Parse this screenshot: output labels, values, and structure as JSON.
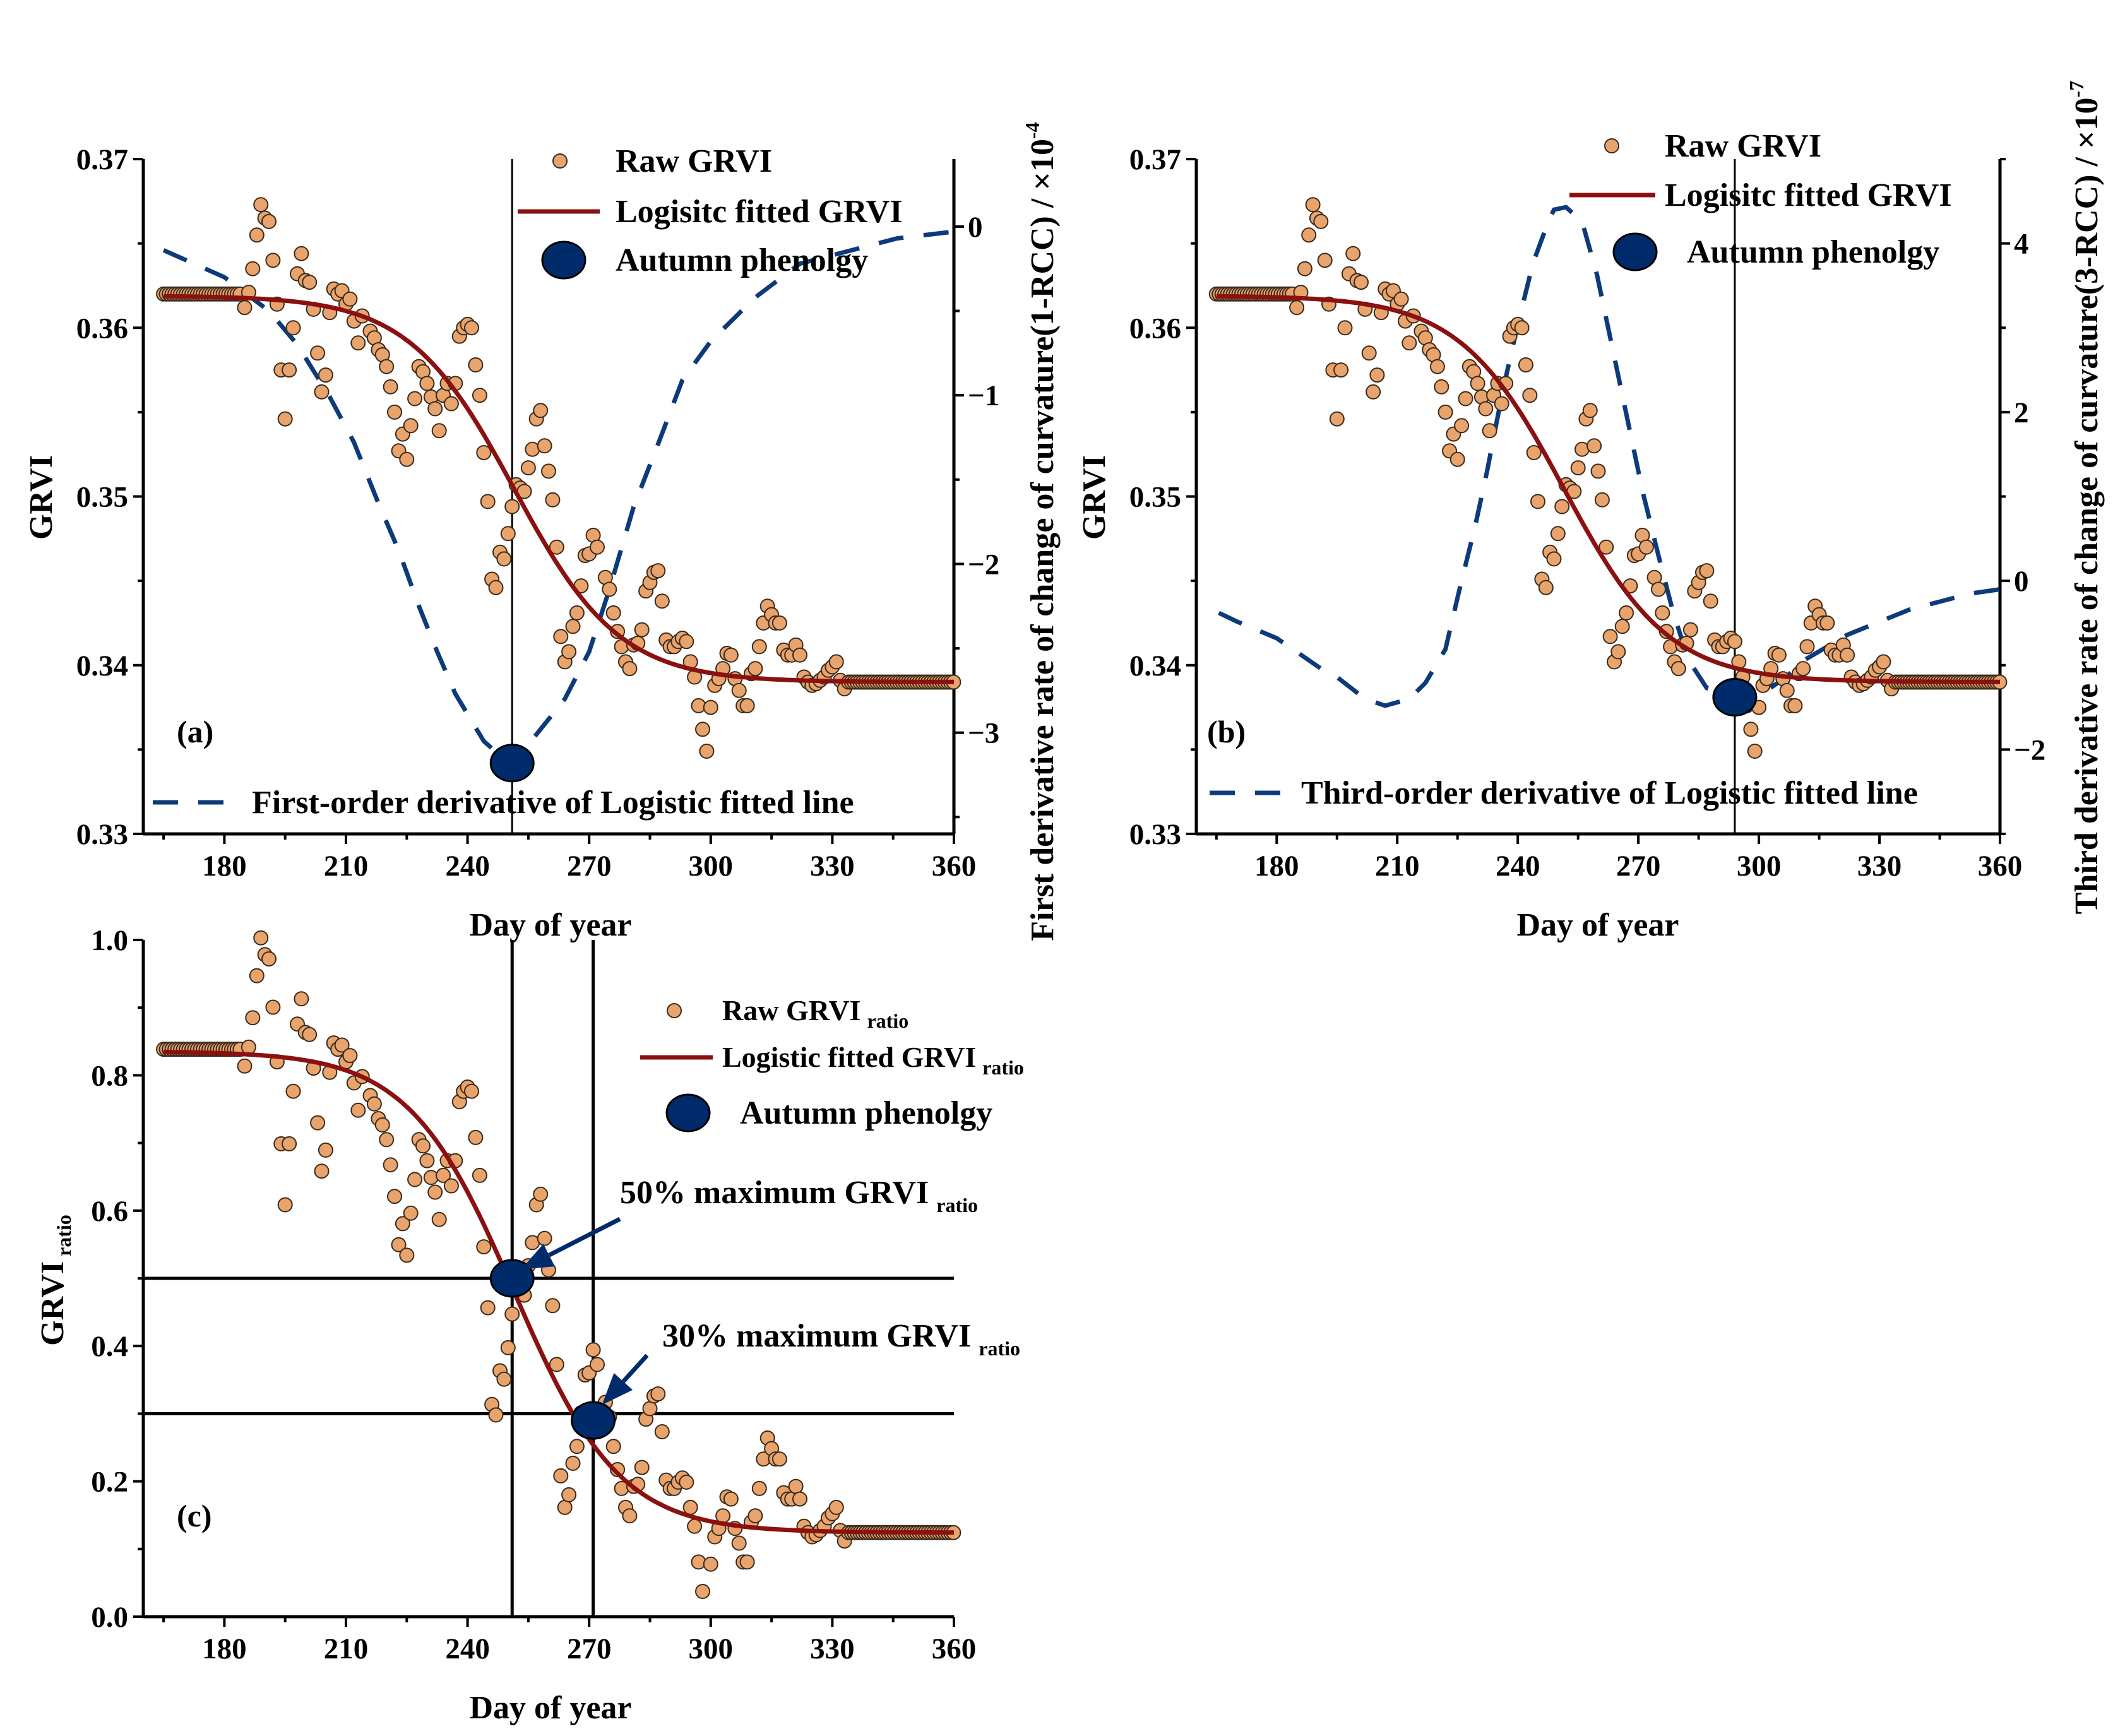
{
  "chart_data": [
    {
      "id": "a",
      "type": "scatter+line",
      "panel_label": "(a)",
      "xlabel": "Day of year",
      "ylabel": "GRVI",
      "y2label": "First derivative rate of change of curvature(1-RCC) / ×10",
      "y2label_exp": "-4",
      "xlim": [
        160,
        360
      ],
      "xticks": [
        180,
        210,
        240,
        270,
        300,
        330,
        360
      ],
      "ylim": [
        0.33,
        0.37
      ],
      "yticks": [
        "0.33",
        "0.34",
        "0.35",
        "0.36",
        "0.37"
      ],
      "y2lim": [
        -3.6,
        0.4
      ],
      "y2ticks": [
        "−3",
        "−2",
        "−1",
        "0"
      ],
      "y2tick_values": [
        -3,
        -2,
        -1,
        0
      ],
      "legend": {
        "raw": "Raw GRVI",
        "fitted": "Logisitc fitted GRVI",
        "phenology": "Autumn phenolgy",
        "derivative": "First-order derivative of Logistic fitted line"
      },
      "phenology_point": {
        "day": 251,
        "grvi": 0.3342
      },
      "vertical_line_day": 251,
      "derivative_curve": [
        [
          165,
          -0.14
        ],
        [
          180,
          -0.3
        ],
        [
          191,
          -0.5
        ],
        [
          198,
          -0.7
        ],
        [
          206,
          -1.01
        ],
        [
          212,
          -1.28
        ],
        [
          218,
          -1.64
        ],
        [
          223,
          -1.92
        ],
        [
          228,
          -2.25
        ],
        [
          232.5,
          -2.52
        ],
        [
          237,
          -2.77
        ],
        [
          244,
          -3.05
        ],
        [
          251,
          -3.2
        ],
        [
          255,
          -3.07
        ],
        [
          264,
          -2.8
        ],
        [
          270,
          -2.52
        ],
        [
          275,
          -2.15
        ],
        [
          281,
          -1.66
        ],
        [
          287,
          -1.29
        ],
        [
          293,
          -0.91
        ],
        [
          300,
          -0.68
        ],
        [
          311,
          -0.42
        ],
        [
          322,
          -0.22
        ],
        [
          346,
          -0.07
        ],
        [
          360,
          -0.03
        ]
      ]
    },
    {
      "id": "b",
      "type": "scatter+line",
      "panel_label": "(b)",
      "xlabel": "Day of year",
      "ylabel": "GRVI",
      "y2label": "Third derivative rate of change of curvature(3-RCC) / ×10",
      "y2label_exp": "-7",
      "xlim": [
        160,
        360
      ],
      "xticks": [
        180,
        210,
        240,
        270,
        300,
        330,
        360
      ],
      "ylim": [
        0.33,
        0.37
      ],
      "yticks": [
        "0.33",
        "0.34",
        "0.35",
        "0.36",
        "0.37"
      ],
      "y2lim": [
        -3,
        5
      ],
      "y2ticks": [
        "−2",
        "0",
        "2",
        "4"
      ],
      "y2tick_values": [
        -2,
        0,
        2,
        4
      ],
      "legend": {
        "raw": "Raw GRVI",
        "fitted": "Logisitc fitted GRVI",
        "phenology": "Autumn phenolgy",
        "derivative": "Third-order derivative of Logistic fitted line"
      },
      "phenology_point": {
        "day": 294,
        "grvi": 0.3381
      },
      "vertical_line_day": 294,
      "derivative_curve": [
        [
          165.6,
          -0.38
        ],
        [
          170,
          -0.48
        ],
        [
          180,
          -0.68
        ],
        [
          184,
          -0.81
        ],
        [
          191,
          -1.04
        ],
        [
          195,
          -1.14
        ],
        [
          202,
          -1.4
        ],
        [
          207,
          -1.48
        ],
        [
          213,
          -1.4
        ],
        [
          217,
          -1.21
        ],
        [
          222,
          -0.81
        ],
        [
          225.6,
          -0.08
        ],
        [
          229.4,
          0.65
        ],
        [
          232.4,
          1.31
        ],
        [
          236.2,
          2.24
        ],
        [
          240,
          3.04
        ],
        [
          243.8,
          3.77
        ],
        [
          247.6,
          4.26
        ],
        [
          249,
          4.4
        ],
        [
          252,
          4.43
        ],
        [
          256,
          4.26
        ],
        [
          259.7,
          3.63
        ],
        [
          263.5,
          2.77
        ],
        [
          267.3,
          1.91
        ],
        [
          271.1,
          1.05
        ],
        [
          274.9,
          0.32
        ],
        [
          278.7,
          -0.38
        ],
        [
          282.5,
          -0.94
        ],
        [
          287,
          -1.27
        ],
        [
          294,
          -1.37
        ],
        [
          300.7,
          -1.34
        ],
        [
          306.8,
          -1.14
        ],
        [
          311.3,
          -0.94
        ],
        [
          322,
          -0.64
        ],
        [
          337.5,
          -0.34
        ],
        [
          352.7,
          -0.15
        ],
        [
          360,
          -0.1
        ]
      ]
    },
    {
      "id": "c",
      "type": "scatter+line",
      "panel_label": "(c)",
      "xlabel": "Day of year",
      "ylabel": "GRVI",
      "ylabel_sub": "ratio",
      "xlim": [
        160,
        360
      ],
      "xticks": [
        180,
        210,
        240,
        270,
        300,
        330,
        360
      ],
      "ylim": [
        0,
        1
      ],
      "yticks": [
        "0.0",
        "0.2",
        "0.4",
        "0.6",
        "0.8",
        "1.0"
      ],
      "legend": {
        "raw": "Raw GRVI",
        "fitted": "Logistic fitted GRVI",
        "phenology": "Autumn phenolgy",
        "sub": "ratio"
      },
      "normalization": {
        "min": 0.335,
        "max": 0.3672
      },
      "phenology_points": [
        {
          "day": 251,
          "ratio": 0.5
        },
        {
          "day": 271,
          "ratio": 0.29
        }
      ],
      "threshold_lines": {
        "days": [
          251,
          271
        ],
        "ratios": [
          0.5,
          0.3
        ]
      },
      "annotations": [
        {
          "text": "50% maximum GRVI",
          "sub": "ratio",
          "target_day": 251,
          "target_ratio": 0.5
        },
        {
          "text": "30% maximum GRVI",
          "sub": "ratio",
          "target_day": 271,
          "target_ratio": 0.3
        }
      ]
    }
  ],
  "shared": {
    "colors": {
      "raw": "#e8a46c",
      "raw_edge": "#3a2a1a",
      "fitted": "#8b1010",
      "derivative": "#0d3a7a",
      "phenology": "#002b6b"
    },
    "logistic_fit": {
      "base": 0.339,
      "amplitude": 0.0229,
      "t0": 251.5,
      "k": 13
    },
    "plateau_start": {
      "from": 165,
      "to": 184,
      "value": 0.362
    },
    "plateau_end": {
      "from": 334,
      "to": 360,
      "value": 0.339
    },
    "raw_grvi": [
      [
        185,
        0.3612
      ],
      [
        186,
        0.3621
      ],
      [
        187,
        0.3635
      ],
      [
        188,
        0.3655
      ],
      [
        189,
        0.3673
      ],
      [
        190,
        0.3665
      ],
      [
        191,
        0.3663
      ],
      [
        192,
        0.364
      ],
      [
        193,
        0.3614
      ],
      [
        194,
        0.3575
      ],
      [
        195,
        0.3546
      ],
      [
        196,
        0.3575
      ],
      [
        197,
        0.36
      ],
      [
        198,
        0.3632
      ],
      [
        199,
        0.3644
      ],
      [
        200,
        0.3628
      ],
      [
        201,
        0.3627
      ],
      [
        202,
        0.3611
      ],
      [
        203,
        0.3585
      ],
      [
        204,
        0.3562
      ],
      [
        205,
        0.3572
      ],
      [
        206,
        0.3609
      ],
      [
        207,
        0.3623
      ],
      [
        208,
        0.362
      ],
      [
        209,
        0.3622
      ],
      [
        210,
        0.3614
      ],
      [
        211,
        0.3617
      ],
      [
        212,
        0.3604
      ],
      [
        213,
        0.3591
      ],
      [
        214,
        0.3607
      ],
      [
        216,
        0.3598
      ],
      [
        217,
        0.3594
      ],
      [
        218,
        0.3587
      ],
      [
        219,
        0.3584
      ],
      [
        220,
        0.3577
      ],
      [
        221,
        0.3565
      ],
      [
        222,
        0.355
      ],
      [
        223,
        0.3527
      ],
      [
        224,
        0.3537
      ],
      [
        225,
        0.3522
      ],
      [
        226,
        0.3542
      ],
      [
        227,
        0.3558
      ],
      [
        228,
        0.3577
      ],
      [
        229,
        0.3574
      ],
      [
        230,
        0.3567
      ],
      [
        231,
        0.3559
      ],
      [
        232,
        0.3552
      ],
      [
        233,
        0.3539
      ],
      [
        234,
        0.356
      ],
      [
        235,
        0.3567
      ],
      [
        236,
        0.3555
      ],
      [
        237,
        0.3567
      ],
      [
        238,
        0.3595
      ],
      [
        239,
        0.36
      ],
      [
        240,
        0.3602
      ],
      [
        241,
        0.36
      ],
      [
        242,
        0.3578
      ],
      [
        243,
        0.356
      ],
      [
        244,
        0.3526
      ],
      [
        245,
        0.3497
      ],
      [
        246,
        0.3451
      ],
      [
        247,
        0.3446
      ],
      [
        248,
        0.3467
      ],
      [
        249,
        0.3463
      ],
      [
        250,
        0.3478
      ],
      [
        251,
        0.3494
      ],
      [
        252,
        0.3507
      ],
      [
        253,
        0.3505
      ],
      [
        254,
        0.3503
      ],
      [
        255,
        0.3517
      ],
      [
        256,
        0.3528
      ],
      [
        257,
        0.3546
      ],
      [
        258,
        0.3551
      ],
      [
        259,
        0.353
      ],
      [
        260,
        0.3515
      ],
      [
        261,
        0.3498
      ],
      [
        262,
        0.347
      ],
      [
        263,
        0.3417
      ],
      [
        264,
        0.3402
      ],
      [
        265,
        0.3408
      ],
      [
        266,
        0.3423
      ],
      [
        267,
        0.3431
      ],
      [
        268,
        0.3447
      ],
      [
        269,
        0.3465
      ],
      [
        270,
        0.3466
      ],
      [
        271,
        0.3477
      ],
      [
        272,
        0.347
      ],
      [
        274,
        0.3452
      ],
      [
        275,
        0.3445
      ],
      [
        276,
        0.3431
      ],
      [
        277,
        0.342
      ],
      [
        278,
        0.3411
      ],
      [
        279,
        0.3402
      ],
      [
        280,
        0.3398
      ],
      [
        281,
        0.3412
      ],
      [
        282,
        0.3413
      ],
      [
        283,
        0.3421
      ],
      [
        284,
        0.3444
      ],
      [
        285,
        0.3449
      ],
      [
        286,
        0.3455
      ],
      [
        287,
        0.3456
      ],
      [
        288,
        0.3438
      ],
      [
        289,
        0.3415
      ],
      [
        290,
        0.3411
      ],
      [
        291,
        0.3411
      ],
      [
        292,
        0.3414
      ],
      [
        293,
        0.3416
      ],
      [
        294,
        0.3414
      ],
      [
        295,
        0.3402
      ],
      [
        296,
        0.3393
      ],
      [
        297,
        0.3376
      ],
      [
        298,
        0.3362
      ],
      [
        299,
        0.3349
      ],
      [
        300,
        0.3375
      ],
      [
        301,
        0.3388
      ],
      [
        302,
        0.3392
      ],
      [
        303,
        0.3398
      ],
      [
        304,
        0.3407
      ],
      [
        305,
        0.3406
      ],
      [
        306,
        0.3392
      ],
      [
        307,
        0.3385
      ],
      [
        308,
        0.3376
      ],
      [
        309,
        0.3376
      ],
      [
        310,
        0.3395
      ],
      [
        311,
        0.3398
      ],
      [
        312,
        0.3411
      ],
      [
        313,
        0.3425
      ],
      [
        314,
        0.3435
      ],
      [
        315,
        0.343
      ],
      [
        316,
        0.3425
      ],
      [
        317,
        0.3425
      ],
      [
        318,
        0.3409
      ],
      [
        319,
        0.3406
      ],
      [
        320,
        0.3406
      ],
      [
        321,
        0.3412
      ],
      [
        322,
        0.3406
      ],
      [
        323,
        0.3393
      ],
      [
        324,
        0.339
      ],
      [
        325,
        0.3388
      ],
      [
        326,
        0.3389
      ],
      [
        327,
        0.3391
      ],
      [
        328,
        0.3393
      ],
      [
        329,
        0.3397
      ],
      [
        330,
        0.3399
      ],
      [
        331,
        0.3402
      ],
      [
        332,
        0.3391
      ],
      [
        333,
        0.3386
      ]
    ]
  }
}
